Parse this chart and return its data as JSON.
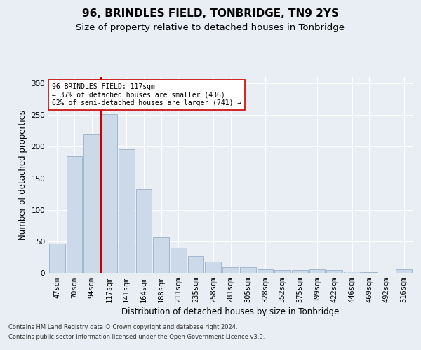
{
  "title": "96, BRINDLES FIELD, TONBRIDGE, TN9 2YS",
  "subtitle": "Size of property relative to detached houses in Tonbridge",
  "xlabel": "Distribution of detached houses by size in Tonbridge",
  "ylabel": "Number of detached properties",
  "categories": [
    "47sqm",
    "70sqm",
    "94sqm",
    "117sqm",
    "141sqm",
    "164sqm",
    "188sqm",
    "211sqm",
    "235sqm",
    "258sqm",
    "281sqm",
    "305sqm",
    "328sqm",
    "352sqm",
    "375sqm",
    "399sqm",
    "422sqm",
    "446sqm",
    "469sqm",
    "492sqm",
    "516sqm"
  ],
  "values": [
    47,
    185,
    219,
    251,
    196,
    133,
    57,
    40,
    27,
    18,
    9,
    9,
    5,
    4,
    4,
    5,
    4,
    2,
    1,
    0,
    5
  ],
  "bar_color": "#ccd9e8",
  "bar_edge_color": "#9ab0c8",
  "vline_x_index": 3,
  "vline_color": "#cc0000",
  "annotation_text": "96 BRINDLES FIELD: 117sqm\n← 37% of detached houses are smaller (436)\n62% of semi-detached houses are larger (741) →",
  "annotation_box_color": "#ffffff",
  "annotation_box_edge": "#cc0000",
  "footer_line1": "Contains HM Land Registry data © Crown copyright and database right 2024.",
  "footer_line2": "Contains public sector information licensed under the Open Government Licence v3.0.",
  "ylim": [
    0,
    310
  ],
  "yticks": [
    0,
    50,
    100,
    150,
    200,
    250,
    300
  ],
  "background_color": "#e8eef4",
  "grid_color": "#ffffff",
  "title_fontsize": 11,
  "subtitle_fontsize": 9.5,
  "axis_label_fontsize": 8.5,
  "tick_fontsize": 7.5,
  "footer_fontsize": 6
}
